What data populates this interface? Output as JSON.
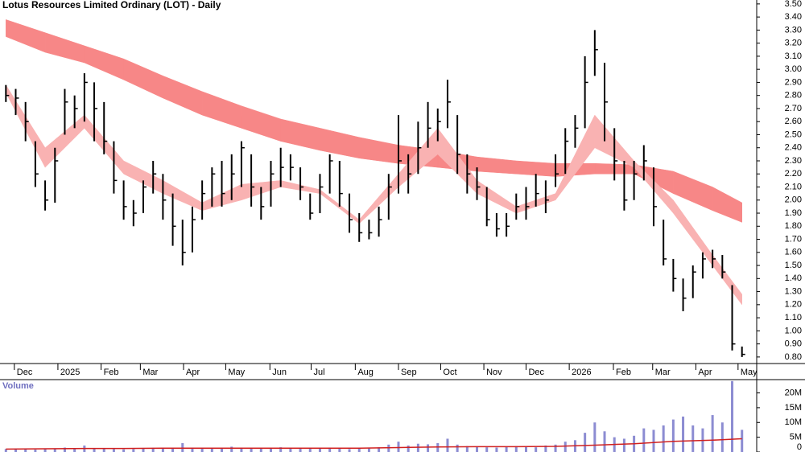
{
  "chart_data": [
    {
      "type": "ohlc",
      "title": "Lotus Resources Limited Ordinary (LOT) - Daily",
      "color": "#000000",
      "x": [
        0,
        1,
        2,
        3,
        4,
        5,
        6,
        7,
        8,
        9,
        10,
        11,
        12,
        13,
        14,
        15,
        16,
        17,
        18,
        19,
        20,
        21,
        22,
        23,
        24,
        25,
        26,
        27,
        28,
        29,
        30,
        31,
        32,
        33,
        34,
        35,
        36,
        37,
        38,
        39,
        40,
        41,
        42,
        43,
        44,
        45,
        46,
        47,
        48,
        49,
        50,
        51,
        52,
        53,
        54,
        55,
        56,
        57,
        58,
        59,
        60,
        61,
        62,
        63,
        64,
        65,
        66,
        67,
        68,
        69,
        70,
        71,
        72,
        73,
        74,
        75
      ],
      "high": [
        2.88,
        2.85,
        2.75,
        2.45,
        2.15,
        2.4,
        2.85,
        2.8,
        2.97,
        2.9,
        2.75,
        2.45,
        2.15,
        2.0,
        2.15,
        2.3,
        2.2,
        2.05,
        1.85,
        1.95,
        2.15,
        2.25,
        2.3,
        2.35,
        2.45,
        2.35,
        2.1,
        2.3,
        2.4,
        2.35,
        2.25,
        2.05,
        2.2,
        2.35,
        2.3,
        2.05,
        1.9,
        1.85,
        1.95,
        2.2,
        2.65,
        2.35,
        2.6,
        2.75,
        2.7,
        2.92,
        2.65,
        2.35,
        2.25,
        2.1,
        1.9,
        1.9,
        2.05,
        2.1,
        2.2,
        2.15,
        2.35,
        2.55,
        2.65,
        3.1,
        3.3,
        3.05,
        2.55,
        2.3,
        2.3,
        2.42,
        2.25,
        1.85,
        1.55,
        1.4,
        1.5,
        1.6,
        1.62,
        1.58,
        1.35,
        0.88
      ],
      "low": [
        2.75,
        2.65,
        2.45,
        2.1,
        1.92,
        1.98,
        2.5,
        2.55,
        2.6,
        2.45,
        2.35,
        2.05,
        1.85,
        1.8,
        1.9,
        2.05,
        1.85,
        1.65,
        1.5,
        1.6,
        1.85,
        1.95,
        1.95,
        2.0,
        2.1,
        1.95,
        1.85,
        1.95,
        2.1,
        2.15,
        2.0,
        1.85,
        1.9,
        2.05,
        1.95,
        1.75,
        1.68,
        1.7,
        1.72,
        1.85,
        2.05,
        2.05,
        2.2,
        2.4,
        2.45,
        2.55,
        2.2,
        2.05,
        2.0,
        1.8,
        1.72,
        1.72,
        1.85,
        1.85,
        1.95,
        1.9,
        2.1,
        2.2,
        2.4,
        2.55,
        2.95,
        2.45,
        2.15,
        1.92,
        2.0,
        2.15,
        1.8,
        1.5,
        1.3,
        1.15,
        1.25,
        1.4,
        1.48,
        1.4,
        0.85,
        0.8
      ],
      "close": [
        2.8,
        2.78,
        2.6,
        2.2,
        2.0,
        2.3,
        2.75,
        2.7,
        2.9,
        2.7,
        2.45,
        2.15,
        1.95,
        1.9,
        2.1,
        2.2,
        2.0,
        1.8,
        1.6,
        1.85,
        2.05,
        2.2,
        2.05,
        2.2,
        2.4,
        2.1,
        1.95,
        2.2,
        2.25,
        2.25,
        2.1,
        1.9,
        2.1,
        2.3,
        2.05,
        1.85,
        1.75,
        1.75,
        1.85,
        2.1,
        2.3,
        2.2,
        2.4,
        2.55,
        2.6,
        2.75,
        2.35,
        2.2,
        2.1,
        1.85,
        1.78,
        1.8,
        1.95,
        1.95,
        2.05,
        2.0,
        2.2,
        2.45,
        2.55,
        2.9,
        3.15,
        2.75,
        2.3,
        2.0,
        2.2,
        2.3,
        1.95,
        1.55,
        1.4,
        1.25,
        1.45,
        1.55,
        1.55,
        1.45,
        0.9,
        0.82
      ],
      "bands": [
        {
          "color": "#f78787",
          "x": [
            0,
            4,
            8,
            12,
            16,
            20,
            24,
            28,
            32,
            36,
            40,
            44,
            48,
            52,
            56,
            60,
            64,
            68,
            72,
            75
          ],
          "upper": [
            3.38,
            3.28,
            3.18,
            3.08,
            2.95,
            2.83,
            2.72,
            2.62,
            2.55,
            2.48,
            2.42,
            2.38,
            2.33,
            2.3,
            2.28,
            2.28,
            2.27,
            2.22,
            2.1,
            1.98
          ],
          "lower": [
            3.25,
            3.13,
            3.05,
            2.92,
            2.78,
            2.65,
            2.55,
            2.45,
            2.38,
            2.32,
            2.28,
            2.25,
            2.22,
            2.2,
            2.18,
            2.2,
            2.2,
            2.05,
            1.92,
            1.83
          ]
        },
        {
          "color": "#f9b2b2",
          "x": [
            0,
            4,
            8,
            12,
            16,
            20,
            24,
            28,
            32,
            36,
            40,
            44,
            48,
            52,
            56,
            60,
            64,
            68,
            72,
            75
          ],
          "upper": [
            2.88,
            2.4,
            2.65,
            2.3,
            2.15,
            1.98,
            2.12,
            2.15,
            2.08,
            1.85,
            2.2,
            2.55,
            2.15,
            1.95,
            2.05,
            2.65,
            2.3,
            2.0,
            1.58,
            1.28
          ],
          "lower": [
            2.82,
            2.25,
            2.55,
            2.2,
            2.05,
            1.92,
            2.0,
            2.1,
            2.05,
            1.82,
            2.1,
            2.35,
            2.05,
            1.9,
            2.0,
            2.4,
            2.25,
            1.9,
            1.5,
            1.2
          ]
        }
      ],
      "xlim": [
        -0.6,
        76.5
      ],
      "xticks": [
        {
          "value": 0.86,
          "label": "Dec"
        },
        {
          "value": 5.3,
          "label": "2025"
        },
        {
          "value": 9.7,
          "label": "Feb"
        },
        {
          "value": 13.7,
          "label": "Mar"
        },
        {
          "value": 18.1,
          "label": "Apr"
        },
        {
          "value": 22.4,
          "label": "May"
        },
        {
          "value": 26.9,
          "label": "Jun"
        },
        {
          "value": 31.1,
          "label": "Jul"
        },
        {
          "value": 35.6,
          "label": "Aug"
        },
        {
          "value": 40.0,
          "label": "Sep"
        },
        {
          "value": 44.3,
          "label": "Oct"
        },
        {
          "value": 48.7,
          "label": "Nov"
        },
        {
          "value": 53.0,
          "label": "Dec"
        },
        {
          "value": 57.4,
          "label": "2026"
        },
        {
          "value": 61.9,
          "label": "Feb"
        },
        {
          "value": 65.9,
          "label": "Mar"
        },
        {
          "value": 70.3,
          "label": "Apr"
        },
        {
          "value": 74.6,
          "label": "May"
        }
      ],
      "ylim": [
        0.75,
        3.53
      ],
      "yticks": [
        {
          "value": 0.8,
          "label": "0.80"
        },
        {
          "value": 0.9,
          "label": "0.90"
        },
        {
          "value": 1.0,
          "label": "1.00"
        },
        {
          "value": 1.1,
          "label": "1.10"
        },
        {
          "value": 1.2,
          "label": "1.20"
        },
        {
          "value": 1.3,
          "label": "1.30"
        },
        {
          "value": 1.4,
          "label": "1.40"
        },
        {
          "value": 1.5,
          "label": "1.50"
        },
        {
          "value": 1.6,
          "label": "1.60"
        },
        {
          "value": 1.7,
          "label": "1.70"
        },
        {
          "value": 1.8,
          "label": "1.80"
        },
        {
          "value": 1.9,
          "label": "1.90"
        },
        {
          "value": 2.0,
          "label": "2.00"
        },
        {
          "value": 2.1,
          "label": "2.10"
        },
        {
          "value": 2.2,
          "label": "2.20"
        },
        {
          "value": 2.3,
          "label": "2.30"
        },
        {
          "value": 2.4,
          "label": "2.40"
        },
        {
          "value": 2.5,
          "label": "2.50"
        },
        {
          "value": 2.6,
          "label": "2.60"
        },
        {
          "value": 2.7,
          "label": "2.70"
        },
        {
          "value": 2.8,
          "label": "2.80"
        },
        {
          "value": 2.9,
          "label": "2.90"
        },
        {
          "value": 3.0,
          "label": "3.00"
        },
        {
          "value": 3.1,
          "label": "3.10"
        },
        {
          "value": 3.2,
          "label": "3.20"
        },
        {
          "value": 3.3,
          "label": "3.30"
        },
        {
          "value": 3.4,
          "label": "3.40"
        },
        {
          "value": 3.5,
          "label": "3.50"
        }
      ]
    },
    {
      "type": "bar",
      "title": "Volume",
      "color": "#8c8cd2",
      "x": [
        0,
        1,
        2,
        3,
        4,
        5,
        6,
        7,
        8,
        9,
        10,
        11,
        12,
        13,
        14,
        15,
        16,
        17,
        18,
        19,
        20,
        21,
        22,
        23,
        24,
        25,
        26,
        27,
        28,
        29,
        30,
        31,
        32,
        33,
        34,
        35,
        36,
        37,
        38,
        39,
        40,
        41,
        42,
        43,
        44,
        45,
        46,
        47,
        48,
        49,
        50,
        51,
        52,
        53,
        54,
        55,
        56,
        57,
        58,
        59,
        60,
        61,
        62,
        63,
        64,
        65,
        66,
        67,
        68,
        69,
        70,
        71,
        72,
        73,
        74,
        75
      ],
      "values": [
        1000000,
        900000,
        1100000,
        800000,
        1200000,
        1000000,
        1500000,
        1200000,
        2200000,
        1300000,
        1100000,
        1000000,
        900000,
        1000000,
        1200000,
        1400000,
        1100000,
        1300000,
        3000000,
        1500000,
        1400000,
        1200000,
        1300000,
        1800000,
        1500000,
        1200000,
        1100000,
        1400000,
        1600000,
        1300000,
        1200000,
        1100000,
        1300000,
        1500000,
        1200000,
        1000000,
        1100000,
        1200000,
        1600000,
        2500000,
        3500000,
        2200000,
        2800000,
        2600000,
        3000000,
        4500000,
        2500000,
        2000000,
        1800000,
        1600000,
        1500000,
        1700000,
        2000000,
        1800000,
        1600000,
        2200000,
        2500000,
        3500000,
        4000000,
        6500000,
        10000000,
        7000000,
        5000000,
        4500000,
        5500000,
        8000000,
        7500000,
        9000000,
        11000000,
        12000000,
        9000000,
        8000000,
        12500000,
        10000000,
        24000000,
        7500000
      ],
      "average": {
        "color": "#d02020",
        "x": [
          0,
          4,
          8,
          12,
          16,
          20,
          24,
          28,
          32,
          36,
          40,
          44,
          48,
          52,
          56,
          60,
          64,
          68,
          72,
          75
        ],
        "values": [
          1000000,
          1100000,
          1200000,
          1200000,
          1300000,
          1300000,
          1300000,
          1300000,
          1300000,
          1300000,
          1500000,
          1700000,
          1800000,
          1800000,
          1900000,
          2300000,
          2800000,
          3600000,
          4000000,
          4500000
        ]
      },
      "xlim": [
        -0.6,
        76.5
      ],
      "ylim": [
        0,
        24500000
      ],
      "yticks": [
        0,
        {
          "value": 5000000,
          "label": "5M"
        },
        {
          "value": 10000000,
          "label": "10M"
        },
        {
          "value": 15000000,
          "label": "15M"
        },
        {
          "value": 20000000,
          "label": "20M"
        }
      ]
    }
  ]
}
